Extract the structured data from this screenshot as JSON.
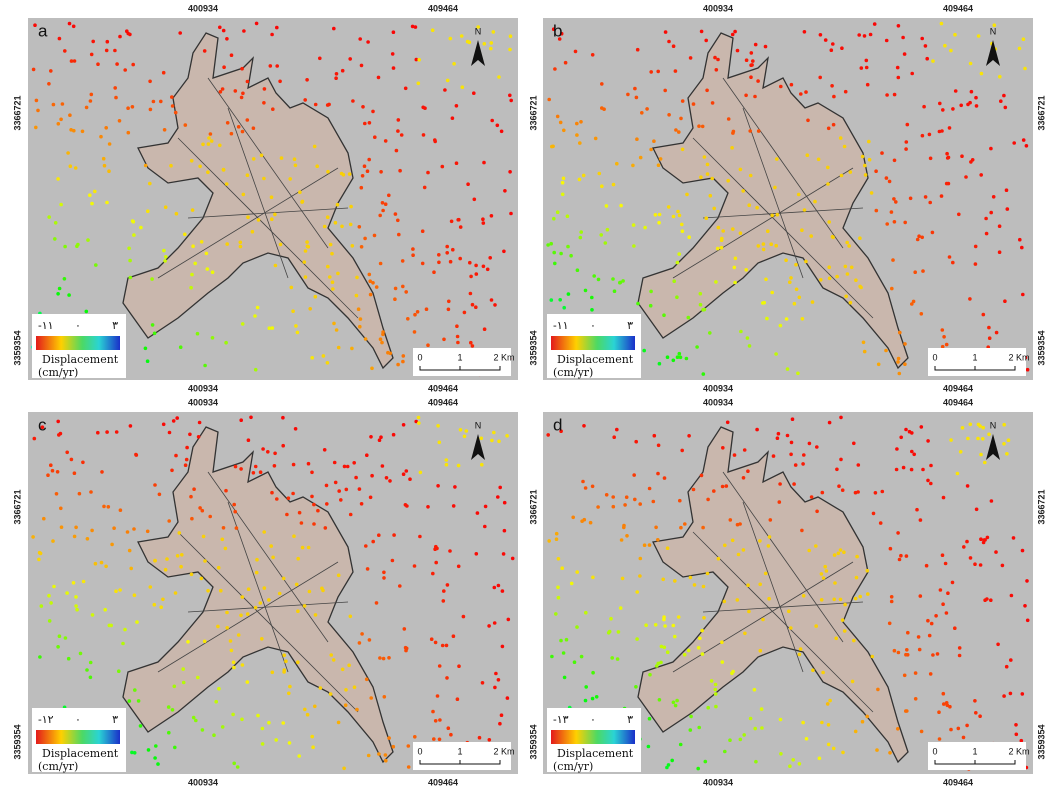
{
  "panels": [
    {
      "label": "a",
      "legend": {
        "min": "-۱۱",
        "mid": "۰",
        "max": "۳"
      }
    },
    {
      "label": "b",
      "legend": {
        "min": "-۱۱",
        "mid": "۰",
        "max": "۳"
      }
    },
    {
      "label": "c",
      "legend": {
        "min": "-۱۲",
        "mid": "۰",
        "max": "۳"
      }
    },
    {
      "label": "d",
      "legend": {
        "min": "-۱۳",
        "mid": "۰",
        "max": "۳"
      }
    }
  ],
  "legend_title": "Displacement",
  "legend_unit": "(cm/yr)",
  "coordinates": {
    "x": [
      "400934",
      "409464"
    ],
    "y": [
      "3366721",
      "3359354"
    ]
  },
  "scale": [
    "0",
    "1",
    "2 Km"
  ],
  "north": "N"
}
